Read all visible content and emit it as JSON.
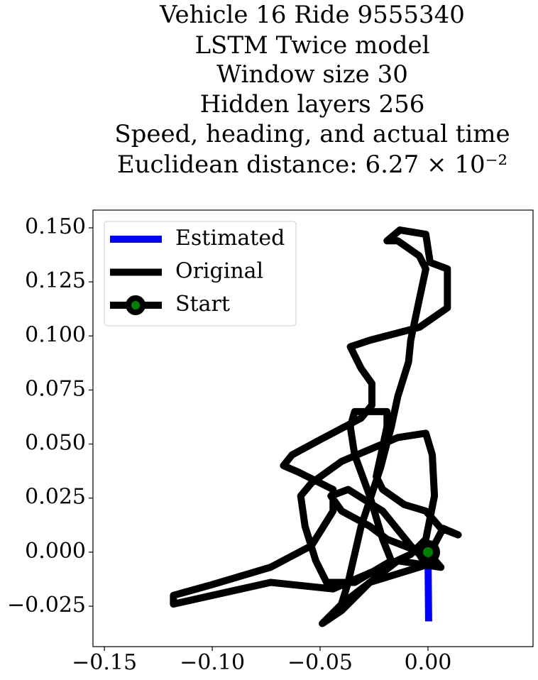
{
  "chart_data": {
    "type": "line",
    "title": [
      "Vehicle 16 Ride 9555340",
      "LSTM Twice model",
      "Window size 30",
      "Hidden layers 256",
      "Speed, heading, and actual time",
      "Euclidean distance: 6.27 × 10⁻²"
    ],
    "xlim": [
      -0.1553,
      0.0487
    ],
    "ylim": [
      -0.0437,
      0.1582
    ],
    "xticks": [
      {
        "value": -0.15,
        "label": "−0.15"
      },
      {
        "value": -0.1,
        "label": "−0.10"
      },
      {
        "value": -0.05,
        "label": "−0.05"
      },
      {
        "value": 0,
        "label": "0.00"
      }
    ],
    "yticks": [
      {
        "value": -0.025,
        "label": "−0.025"
      },
      {
        "value": 0,
        "label": "0.000"
      },
      {
        "value": 0.025,
        "label": "0.025"
      },
      {
        "value": 0.05,
        "label": "0.050"
      },
      {
        "value": 0.075,
        "label": "0.075"
      },
      {
        "value": 0.1,
        "label": "0.100"
      },
      {
        "value": 0.125,
        "label": "0.125"
      },
      {
        "value": 0.15,
        "label": "0.150"
      }
    ],
    "legend": "upper left",
    "series": [
      {
        "name": "Estimated",
        "color": "#0000ff",
        "x": [
          0,
          0.0003
        ],
        "values": [
          0,
          -0.032
        ]
      },
      {
        "name": "Original",
        "color": "#000000",
        "x": [
          0,
          0.006,
          -0.014,
          -0.04,
          -0.049,
          -0.04,
          -0.027,
          -0.001,
          0.006,
          -0.001,
          -0.019,
          -0.027,
          -0.04,
          -0.045,
          -0.037,
          -0.021,
          -0.008,
          -0.001,
          0.007,
          0.014,
          0.006,
          -0.001,
          -0.011,
          -0.021,
          -0.024,
          -0.019,
          -0.019,
          -0.034,
          -0.036,
          -0.034,
          -0.027,
          -0.021,
          -0.017,
          -0.034,
          -0.047,
          -0.052,
          -0.057,
          -0.059,
          -0.054,
          -0.04,
          -0.014,
          -0.001,
          0.002,
          0.003,
          -0.001,
          -0.008,
          -0.021,
          -0.044,
          -0.073,
          -0.1,
          -0.118,
          -0.118,
          -0.1,
          -0.073,
          -0.054,
          -0.044,
          -0.044,
          -0.06,
          -0.067,
          -0.063,
          -0.05,
          -0.031,
          -0.026,
          -0.026,
          -0.031,
          -0.036,
          -0.027,
          -0.004,
          0.009,
          0.009,
          0.001,
          -0.001,
          -0.013,
          -0.019,
          -0.014,
          -0.004,
          -0.001,
          -0.004,
          -0.008,
          -0.009,
          -0.014,
          -0.017,
          -0.022,
          -0.031,
          -0.037,
          -0.041
        ],
        "values": [
          0,
          -0.007,
          -0.004,
          -0.024,
          -0.033,
          -0.027,
          -0.014,
          -0.006,
          -0.007,
          -0.001,
          0.006,
          0.012,
          0.019,
          0.026,
          0.029,
          0.019,
          0.003,
          -0.004,
          0.011,
          0.008,
          0.011,
          0.019,
          0.022,
          0.029,
          0.035,
          0.058,
          0.065,
          0.065,
          0.058,
          0.045,
          0.026,
          0.006,
          -0.004,
          -0.014,
          -0.014,
          -0.004,
          0.012,
          0.026,
          0.032,
          0.042,
          0.053,
          0.055,
          0.045,
          0.026,
          0.006,
          -0.001,
          -0.007,
          -0.017,
          -0.014,
          -0.02,
          -0.024,
          -0.02,
          -0.015,
          -0.007,
          0.003,
          0.019,
          0.029,
          0.037,
          0.04,
          0.045,
          0.052,
          0.062,
          0.068,
          0.078,
          0.085,
          0.095,
          0.098,
          0.104,
          0.113,
          0.131,
          0.134,
          0.147,
          0.149,
          0.144,
          0.144,
          0.137,
          0.131,
          0.117,
          0.098,
          0.088,
          0.072,
          0.058,
          0.039,
          0.012,
          -0.014,
          -0.027
        ]
      },
      {
        "name": "Start",
        "color": "#000000",
        "marker_color": "green",
        "x": [
          0
        ],
        "values": [
          0
        ]
      }
    ]
  }
}
